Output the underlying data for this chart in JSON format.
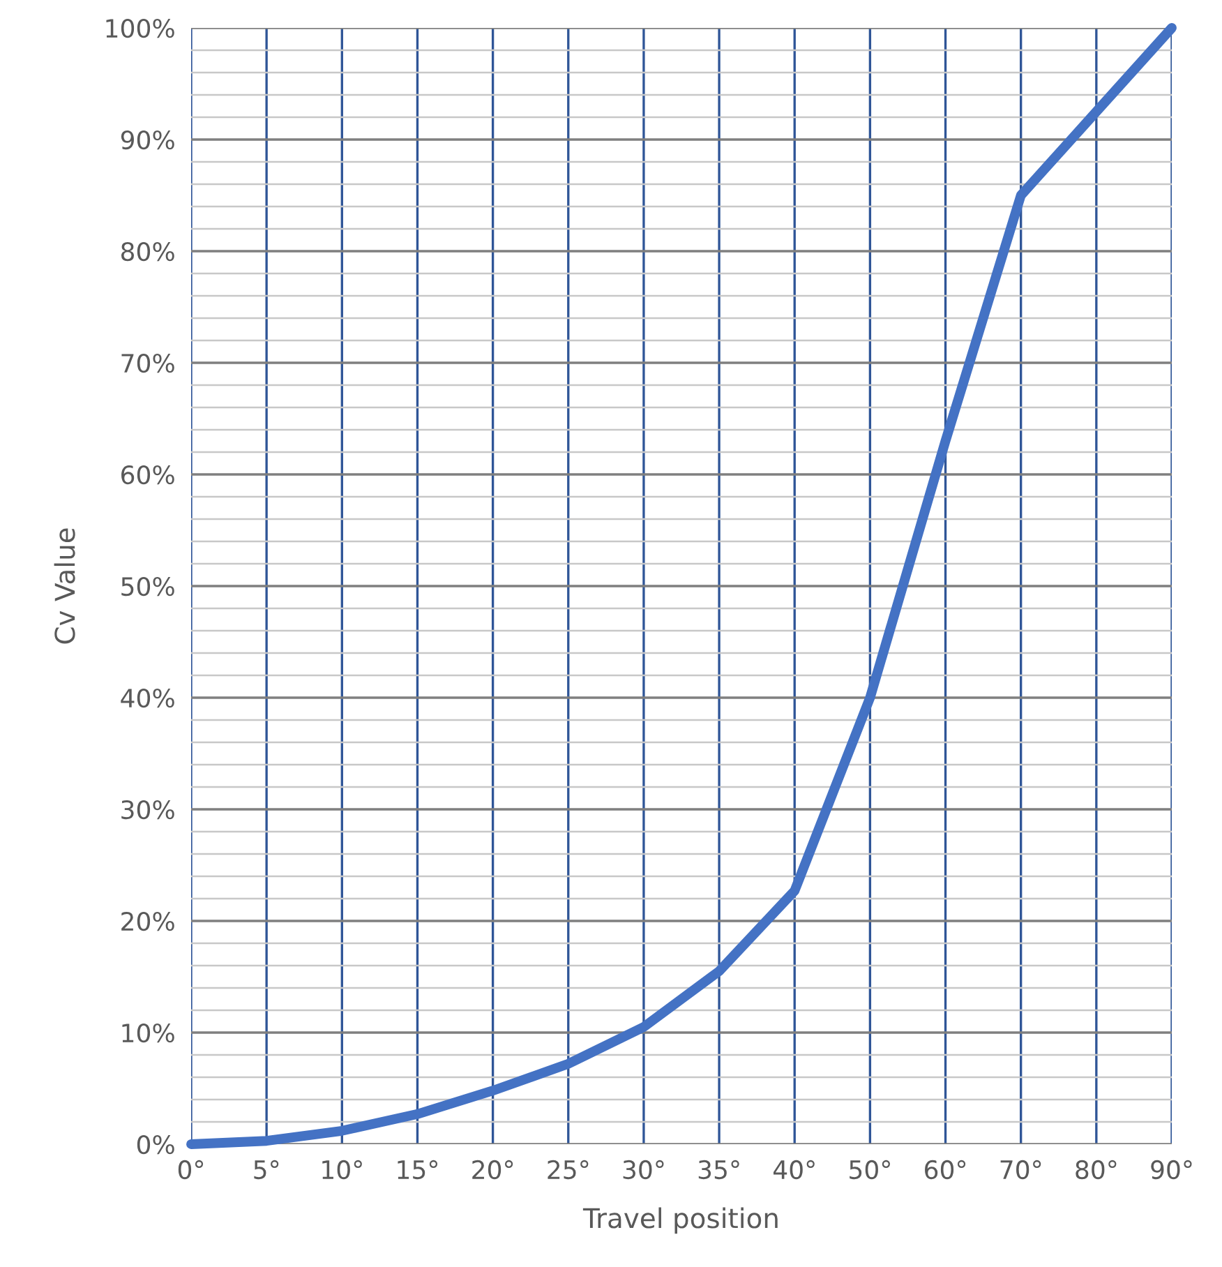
{
  "chart_data": {
    "type": "line",
    "xlabel": "Travel position",
    "ylabel": "Cv Value",
    "categories": [
      "0°",
      "5°",
      "10°",
      "15°",
      "20°",
      "25°",
      "30°",
      "35°",
      "40°",
      "50°",
      "60°",
      "70°",
      "80°",
      "90°"
    ],
    "series": [
      {
        "color": "#4472c4",
        "values": [
          0,
          0.3,
          1.2,
          2.7,
          4.8,
          7.2,
          10.5,
          15.5,
          22.7,
          40,
          63,
          85,
          92.5,
          100
        ]
      }
    ],
    "ylim": [
      0,
      100
    ],
    "yticks": [
      {
        "value": 0,
        "label": "0%"
      },
      {
        "value": 2,
        "label": null
      },
      {
        "value": 4,
        "label": null
      },
      {
        "value": 6,
        "label": null
      },
      {
        "value": 8,
        "label": null
      },
      {
        "value": 10,
        "label": "10%"
      },
      {
        "value": 12,
        "label": null
      },
      {
        "value": 14,
        "label": null
      },
      {
        "value": 16,
        "label": null
      },
      {
        "value": 18,
        "label": null
      },
      {
        "value": 20,
        "label": "20%"
      },
      {
        "value": 22,
        "label": null
      },
      {
        "value": 24,
        "label": null
      },
      {
        "value": 26,
        "label": null
      },
      {
        "value": 28,
        "label": null
      },
      {
        "value": 30,
        "label": "30%"
      },
      {
        "value": 32,
        "label": null
      },
      {
        "value": 34,
        "label": null
      },
      {
        "value": 36,
        "label": null
      },
      {
        "value": 38,
        "label": null
      },
      {
        "value": 40,
        "label": "40%"
      },
      {
        "value": 42,
        "label": null
      },
      {
        "value": 44,
        "label": null
      },
      {
        "value": 46,
        "label": null
      },
      {
        "value": 48,
        "label": null
      },
      {
        "value": 50,
        "label": "50%"
      },
      {
        "value": 52,
        "label": null
      },
      {
        "value": 54,
        "label": null
      },
      {
        "value": 56,
        "label": null
      },
      {
        "value": 58,
        "label": null
      },
      {
        "value": 60,
        "label": "60%"
      },
      {
        "value": 62,
        "label": null
      },
      {
        "value": 64,
        "label": null
      },
      {
        "value": 66,
        "label": null
      },
      {
        "value": 68,
        "label": null
      },
      {
        "value": 70,
        "label": "70%"
      },
      {
        "value": 72,
        "label": null
      },
      {
        "value": 74,
        "label": null
      },
      {
        "value": 76,
        "label": null
      },
      {
        "value": 78,
        "label": null
      },
      {
        "value": 80,
        "label": "80%"
      },
      {
        "value": 82,
        "label": null
      },
      {
        "value": 84,
        "label": null
      },
      {
        "value": 86,
        "label": null
      },
      {
        "value": 88,
        "label": null
      },
      {
        "value": 90,
        "label": "90%"
      },
      {
        "value": 92,
        "label": null
      },
      {
        "value": 94,
        "label": null
      },
      {
        "value": 96,
        "label": null
      },
      {
        "value": 98,
        "label": null
      },
      {
        "value": 100,
        "label": "100%"
      }
    ],
    "grid": true,
    "legend": false,
    "marker": "none",
    "line_style": "solid"
  }
}
